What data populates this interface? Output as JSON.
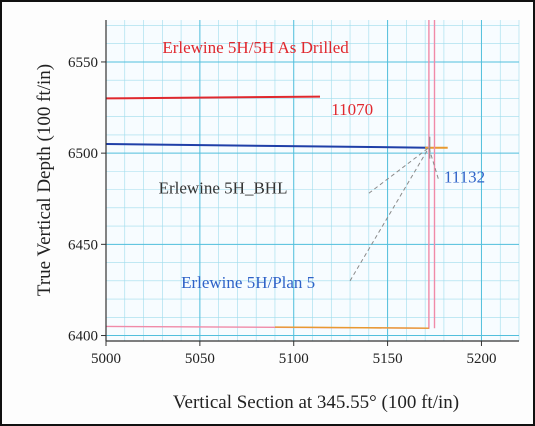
{
  "chart_data": {
    "type": "line",
    "xlabel": "Vertical Section at 345.55° (100 ft/in)",
    "ylabel": "True Vertical Depth (100 ft/in)",
    "xlim": [
      5000,
      5220
    ],
    "ylim": [
      6397,
      6573
    ],
    "y_inverted": true,
    "grid": true,
    "x_ticks": [
      5000,
      5050,
      5100,
      5150,
      5200
    ],
    "y_ticks": [
      6400,
      6450,
      6500,
      6550
    ],
    "series": [
      {
        "name": "Erlewine 5H/5H As Drilled",
        "color": "#e0282e",
        "points": [
          [
            5000,
            6530
          ],
          [
            5114,
            6531
          ]
        ]
      },
      {
        "name": "",
        "color": "#1f3fa8",
        "points": [
          [
            5000,
            6505
          ],
          [
            5172,
            6503
          ]
        ]
      },
      {
        "name": "",
        "color": "#e89a30",
        "points": [
          [
            5170,
            6503
          ],
          [
            5182,
            6503
          ]
        ]
      },
      {
        "name": "Erlewine 5H/Plan 5",
        "color": "#f08aa8",
        "points": [
          [
            5000,
            6405
          ],
          [
            5172,
            6404
          ],
          [
            5172,
            6573
          ]
        ]
      },
      {
        "name": "",
        "color": "#f08aa8",
        "points": [
          [
            5175,
            6404
          ],
          [
            5175,
            6573
          ]
        ]
      },
      {
        "name": "",
        "color": "#e89a30",
        "points": [
          [
            5090,
            6404.6
          ],
          [
            5172,
            6404
          ]
        ]
      }
    ],
    "annotations": [
      {
        "text": "Erlewine 5H/5H As Drilled",
        "x": 5030,
        "y": 6555,
        "color": "#e0282e"
      },
      {
        "text": "11070",
        "x": 5120,
        "y": 6521,
        "color": "#e0282e"
      },
      {
        "text": "Erlewine 5H_BHL",
        "x": 5028,
        "y": 6478,
        "color": "#333333"
      },
      {
        "text": "11132",
        "x": 5180,
        "y": 6484,
        "color": "#2f63c8"
      },
      {
        "text": "Erlewine 5H/Plan 5",
        "x": 5040,
        "y": 6426,
        "color": "#2f63c8"
      }
    ]
  }
}
